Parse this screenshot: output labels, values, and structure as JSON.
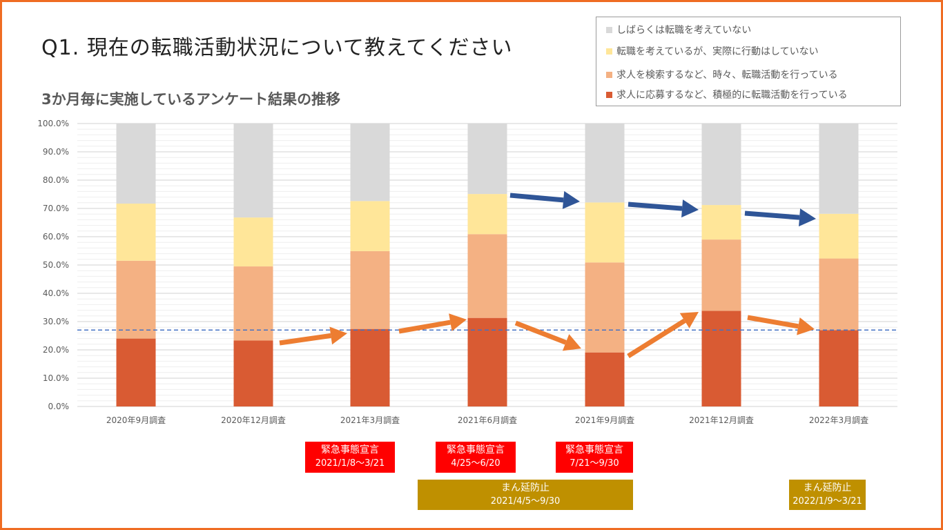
{
  "title": "Q1. 現在の転職活動状況について教えてください",
  "subtitle": "3か月毎に実施しているアンケート結果の推移",
  "colors": {
    "frame": "#EF6C23",
    "gray": "#D9D9D9",
    "yellow": "#FFE699",
    "peach": "#F4B183",
    "red": "#D95B33",
    "arrow_orange": "#ED7D31",
    "arrow_blue": "#2F5597",
    "ref_line": "#4472C4",
    "emergency": "#FF0000",
    "manen": "#BF9000"
  },
  "legend": [
    {
      "label": "しばらくは転職を考えていない",
      "color": "#D9D9D9"
    },
    {
      "label": "転職を考えているが、実際に行動はしていない",
      "color": "#FFE699"
    },
    {
      "label": "求人を検索するなど、時々、転職活動を行っている",
      "color": "#F4B183"
    },
    {
      "label": "求人に応募するなど、積極的に転職活動を行っている",
      "color": "#D95B33"
    }
  ],
  "chart_data": {
    "type": "bar",
    "stacked": true,
    "categories": [
      "2020年9月調査",
      "2020年12月調査",
      "2021年3月調査",
      "2021年6月調査",
      "2021年9月調査",
      "2021年12月調査",
      "2022年3月調査"
    ],
    "series": [
      {
        "name": "求人に応募するなど、積極的に転職活動を行っている",
        "color": "#D95B33",
        "values": [
          24.0,
          23.3,
          27.4,
          31.3,
          19.1,
          33.8,
          27.0
        ]
      },
      {
        "name": "求人を検索するなど、時々、転職活動を行っている",
        "color": "#F4B183",
        "values": [
          27.5,
          26.2,
          27.5,
          29.6,
          31.8,
          25.2,
          25.3
        ]
      },
      {
        "name": "転職を考えているが、実際に行動はしていない",
        "color": "#FFE699",
        "values": [
          20.2,
          17.3,
          17.7,
          14.2,
          21.2,
          12.2,
          15.8
        ]
      },
      {
        "name": "しばらくは転職を考えていない",
        "color": "#D9D9D9",
        "values": [
          28.3,
          33.2,
          27.4,
          24.9,
          27.9,
          28.8,
          31.9
        ]
      }
    ],
    "ylim": [
      0,
      100
    ],
    "yticks": [
      "0.0%",
      "10.0%",
      "20.0%",
      "30.0%",
      "40.0%",
      "50.0%",
      "60.0%",
      "70.0%",
      "80.0%",
      "90.0%",
      "100.0%"
    ],
    "reference_line": 27.0,
    "legend_position": "top-right",
    "annotations": {
      "orange_arrows": [
        [
          1,
          2
        ],
        [
          2,
          3
        ],
        [
          3,
          4
        ],
        [
          4,
          5
        ],
        [
          5,
          6
        ]
      ],
      "blue_arrows": [
        [
          3,
          4
        ],
        [
          4,
          5
        ],
        [
          5,
          6
        ]
      ]
    }
  },
  "notes": [
    {
      "label": "緊急事態宣言",
      "period": "2021/1/8〜3/21",
      "kind": "emergency"
    },
    {
      "label": "緊急事態宣言",
      "period": "4/25〜6/20",
      "kind": "emergency"
    },
    {
      "label": "緊急事態宣言",
      "period": "7/21〜9/30",
      "kind": "emergency"
    },
    {
      "label": "まん延防止",
      "period": "2021/4/5〜9/30",
      "kind": "manen"
    },
    {
      "label": "まん延防止",
      "period": "2022/1/9〜3/21",
      "kind": "manen"
    }
  ]
}
